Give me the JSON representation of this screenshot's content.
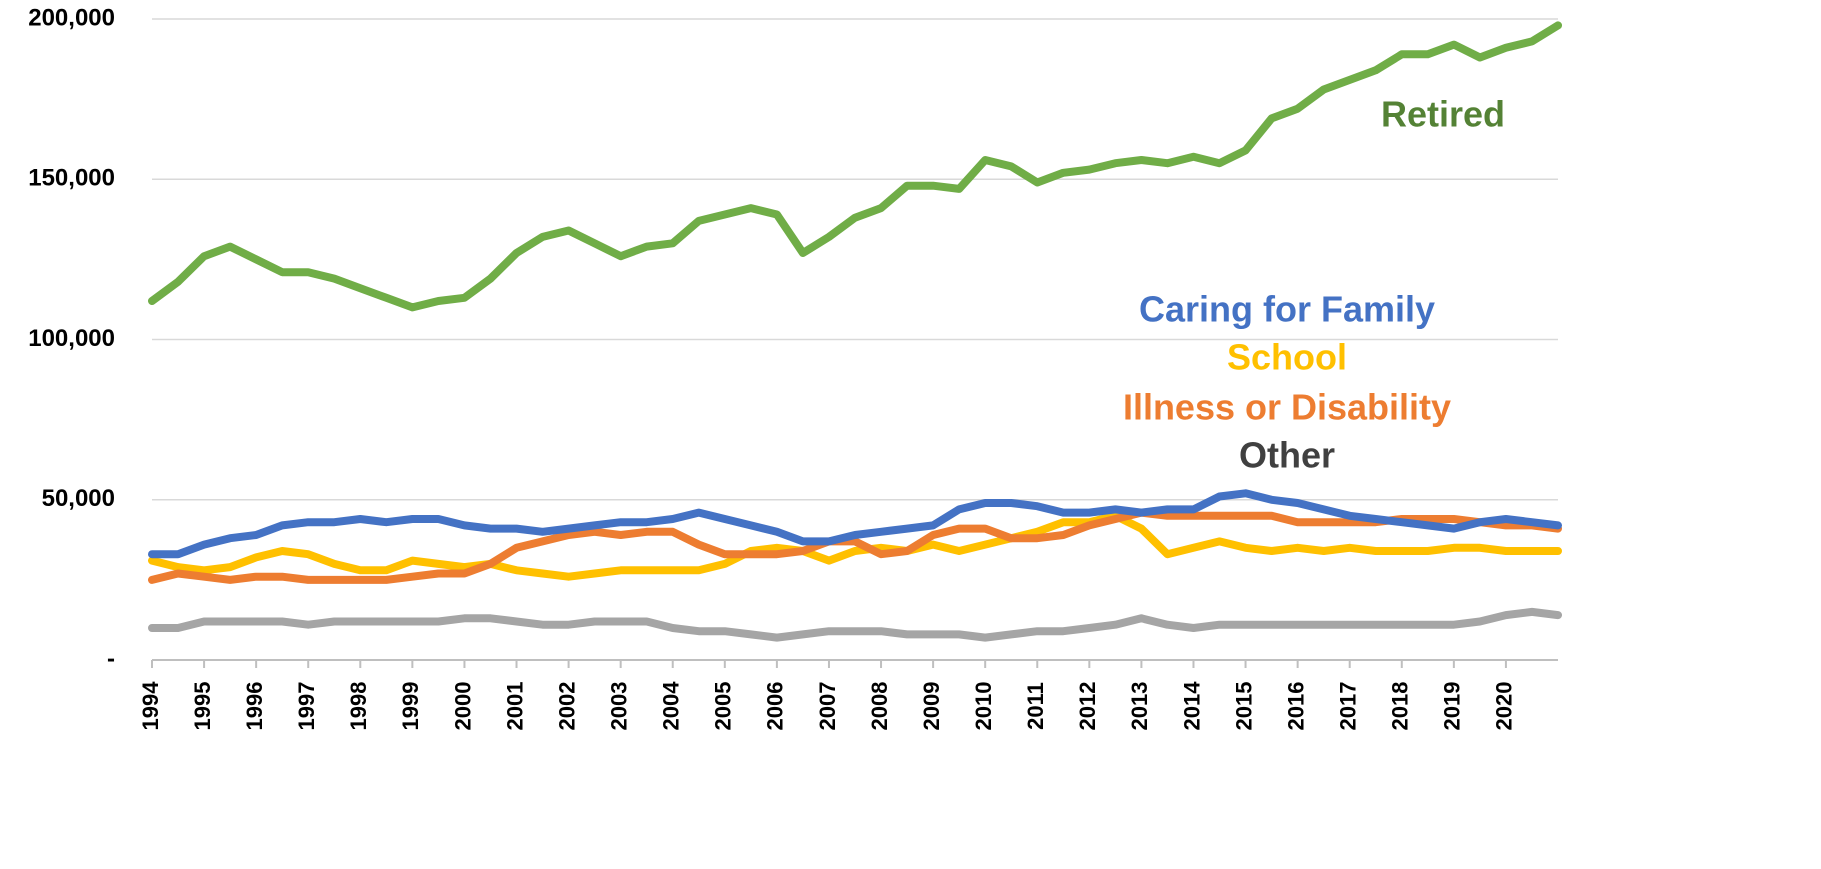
{
  "chart_data": {
    "type": "line",
    "x": [
      1994,
      1994.5,
      1995,
      1995.5,
      1996,
      1996.5,
      1997,
      1997.5,
      1998,
      1998.5,
      1999,
      1999.5,
      2000,
      2000.5,
      2001,
      2001.5,
      2002,
      2002.5,
      2003,
      2003.5,
      2004,
      2004.5,
      2005,
      2005.5,
      2006,
      2006.5,
      2007,
      2007.5,
      2008,
      2008.5,
      2009,
      2009.5,
      2010,
      2010.5,
      2011,
      2011.5,
      2012,
      2012.5,
      2013,
      2013.5,
      2014,
      2014.5,
      2015,
      2015.5,
      2016,
      2016.5,
      2017,
      2017.5,
      2018,
      2018.5,
      2019,
      2019.5,
      2020,
      2020.5,
      2021
    ],
    "series": [
      {
        "name": "Retired",
        "color": "#70ad47",
        "label_color": "#548235",
        "values": [
          112000,
          118000,
          126000,
          129000,
          125000,
          121000,
          121000,
          119000,
          116000,
          113000,
          110000,
          112000,
          113000,
          119000,
          127000,
          132000,
          134000,
          130000,
          126000,
          129000,
          130000,
          137000,
          139000,
          141000,
          139000,
          127000,
          132000,
          138000,
          141000,
          148000,
          148000,
          147000,
          156000,
          154000,
          149000,
          152000,
          153000,
          155000,
          156000,
          155000,
          157000,
          155000,
          159000,
          169000,
          172000,
          178000,
          181000,
          184000,
          189000,
          189000,
          192000,
          188000,
          191000,
          193000,
          198000
        ]
      },
      {
        "name": "Caring for Family",
        "color": "#4472c4",
        "label_color": "#4472c4",
        "values": [
          33000,
          33000,
          36000,
          38000,
          39000,
          42000,
          43000,
          43000,
          44000,
          43000,
          44000,
          44000,
          42000,
          41000,
          41000,
          40000,
          41000,
          42000,
          43000,
          43000,
          44000,
          46000,
          44000,
          42000,
          40000,
          37000,
          37000,
          39000,
          40000,
          41000,
          42000,
          47000,
          49000,
          49000,
          48000,
          46000,
          46000,
          47000,
          46000,
          47000,
          47000,
          51000,
          52000,
          50000,
          49000,
          47000,
          45000,
          44000,
          43000,
          42000,
          41000,
          43000,
          44000,
          43000,
          42000
        ]
      },
      {
        "name": "School",
        "color": "#ffc000",
        "label_color": "#ffc000",
        "values": [
          31000,
          29000,
          28000,
          29000,
          32000,
          34000,
          33000,
          30000,
          28000,
          28000,
          31000,
          30000,
          29000,
          30000,
          28000,
          27000,
          26000,
          27000,
          28000,
          28000,
          28000,
          28000,
          30000,
          34000,
          35000,
          34000,
          31000,
          34000,
          35000,
          34000,
          36000,
          34000,
          36000,
          38000,
          40000,
          43000,
          43000,
          45000,
          41000,
          33000,
          35000,
          37000,
          35000,
          34000,
          35000,
          34000,
          35000,
          34000,
          34000,
          34000,
          35000,
          35000,
          34000,
          34000,
          34000
        ]
      },
      {
        "name": "Illness or Disability",
        "color": "#ed7d31",
        "label_color": "#ed7d31",
        "values": [
          25000,
          27000,
          26000,
          25000,
          26000,
          26000,
          25000,
          25000,
          25000,
          25000,
          26000,
          27000,
          27000,
          30000,
          35000,
          37000,
          39000,
          40000,
          39000,
          40000,
          40000,
          36000,
          33000,
          33000,
          33000,
          34000,
          37000,
          37000,
          33000,
          34000,
          39000,
          41000,
          41000,
          38000,
          38000,
          39000,
          42000,
          44000,
          46000,
          45000,
          45000,
          45000,
          45000,
          45000,
          43000,
          43000,
          43000,
          43000,
          44000,
          44000,
          44000,
          43000,
          42000,
          42000,
          41000
        ]
      },
      {
        "name": "Other",
        "color": "#a5a5a5",
        "label_color": "#404040",
        "values": [
          10000,
          10000,
          12000,
          12000,
          12000,
          12000,
          11000,
          12000,
          12000,
          12000,
          12000,
          12000,
          13000,
          13000,
          12000,
          11000,
          11000,
          12000,
          12000,
          12000,
          10000,
          9000,
          9000,
          8000,
          7000,
          8000,
          9000,
          9000,
          9000,
          8000,
          8000,
          8000,
          7000,
          8000,
          9000,
          9000,
          10000,
          11000,
          13000,
          11000,
          10000,
          11000,
          11000,
          11000,
          11000,
          11000,
          11000,
          11000,
          11000,
          11000,
          11000,
          12000,
          14000,
          15000,
          14000
        ]
      }
    ],
    "xlim": [
      1994,
      2021
    ],
    "xticks": [
      1994,
      1995,
      1996,
      1997,
      1998,
      1999,
      2000,
      2001,
      2002,
      2003,
      2004,
      2005,
      2006,
      2007,
      2008,
      2009,
      2010,
      2011,
      2012,
      2013,
      2014,
      2015,
      2016,
      2017,
      2018,
      2019,
      2020
    ],
    "ylim": [
      0,
      200000
    ],
    "yticks": [
      {
        "value": 0,
        "label": "-"
      },
      {
        "value": 50000,
        "label": "50,000"
      },
      {
        "value": 100000,
        "label": "100,000"
      },
      {
        "value": 150000,
        "label": "150,000"
      },
      {
        "value": 200000,
        "label": "200,000"
      }
    ],
    "grid": true
  }
}
